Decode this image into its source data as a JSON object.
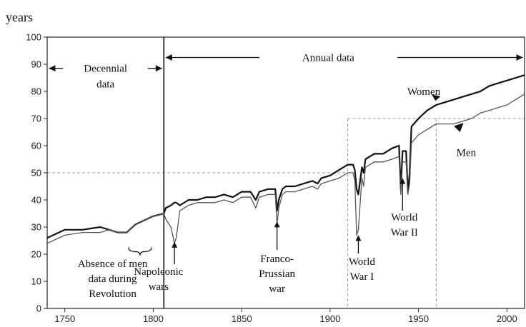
{
  "chart_data": {
    "type": "line",
    "ylabel": "years",
    "xlim": [
      1740,
      2010
    ],
    "ylim": [
      0,
      100
    ],
    "x_ticks": [
      1750,
      1800,
      1850,
      1900,
      1950,
      2000
    ],
    "y_ticks": [
      0,
      10,
      20,
      30,
      40,
      50,
      60,
      70,
      80,
      90,
      100
    ],
    "grid": false,
    "reference_lines": {
      "y50_until": 1910,
      "y70_from": 1910,
      "x1910": true,
      "x1960": true,
      "divider_year": 1806
    },
    "series": [
      {
        "name": "Women",
        "color": "#111111",
        "x": [
          1740,
          1750,
          1760,
          1770,
          1775,
          1780,
          1785,
          1790,
          1800,
          1806,
          1807,
          1810,
          1812,
          1813,
          1815,
          1820,
          1825,
          1830,
          1835,
          1840,
          1845,
          1850,
          1855,
          1858,
          1860,
          1865,
          1869,
          1870,
          1871,
          1873,
          1875,
          1880,
          1885,
          1890,
          1893,
          1895,
          1900,
          1905,
          1910,
          1913,
          1914,
          1915,
          1916,
          1918,
          1919,
          1920,
          1925,
          1930,
          1935,
          1939,
          1940,
          1941,
          1943,
          1944,
          1945,
          1946,
          1950,
          1955,
          1960,
          1965,
          1970,
          1975,
          1980,
          1985,
          1990,
          1995,
          2000,
          2005,
          2010
        ],
        "y": [
          26,
          29,
          29,
          30,
          29,
          28,
          28,
          31,
          34,
          35,
          37,
          38,
          39,
          39,
          38,
          40,
          40,
          41,
          41,
          42,
          41,
          43,
          43,
          40,
          43,
          44,
          44,
          36,
          40,
          44,
          45,
          45,
          46,
          47,
          46,
          48,
          49,
          51,
          53,
          53,
          51,
          44,
          42,
          52,
          50,
          55,
          57,
          57,
          59,
          60,
          44,
          58,
          58,
          43,
          50,
          67,
          70,
          73,
          75,
          76,
          77,
          78,
          79,
          80,
          82,
          83,
          84,
          85,
          86
        ]
      },
      {
        "name": "Men",
        "color": "#555555",
        "x": [
          1740,
          1750,
          1760,
          1770,
          1775,
          1780,
          1785,
          1790,
          1800,
          1806,
          1807,
          1810,
          1812,
          1813,
          1815,
          1820,
          1825,
          1830,
          1835,
          1840,
          1845,
          1850,
          1855,
          1858,
          1860,
          1865,
          1869,
          1870,
          1871,
          1873,
          1875,
          1880,
          1885,
          1890,
          1893,
          1895,
          1900,
          1905,
          1910,
          1913,
          1914,
          1915,
          1916,
          1918,
          1919,
          1920,
          1925,
          1930,
          1935,
          1939,
          1940,
          1941,
          1943,
          1944,
          1945,
          1946,
          1950,
          1955,
          1960,
          1965,
          1970,
          1975,
          1980,
          1985,
          1990,
          1995,
          2000,
          2005,
          2010
        ],
        "y": [
          24,
          27,
          28,
          28,
          29,
          28,
          28,
          31,
          34,
          35,
          33,
          30,
          24,
          26,
          36,
          38,
          39,
          39,
          39,
          40,
          39,
          41,
          41,
          37,
          41,
          42,
          42,
          31,
          37,
          42,
          43,
          43,
          44,
          45,
          44,
          46,
          47,
          48,
          50,
          50,
          47,
          27,
          29,
          48,
          45,
          52,
          54,
          54,
          55,
          56,
          42,
          54,
          54,
          42,
          46,
          61,
          64,
          66,
          68,
          68,
          68,
          69,
          70,
          72,
          73,
          74,
          75,
          77,
          79
        ]
      }
    ],
    "annotations": {
      "decennial": [
        "Decennial",
        "data"
      ],
      "annual": "Annual data",
      "revolution": [
        "Absence of men",
        "data during",
        "Revolution"
      ],
      "napoleonic": [
        "Napoleonic",
        "wars"
      ],
      "franco": [
        "Franco-",
        "Prussian",
        "war"
      ],
      "ww1": [
        "World",
        "War I"
      ],
      "ww2": [
        "World",
        "War II"
      ],
      "women": "Women",
      "men": "Men"
    }
  }
}
